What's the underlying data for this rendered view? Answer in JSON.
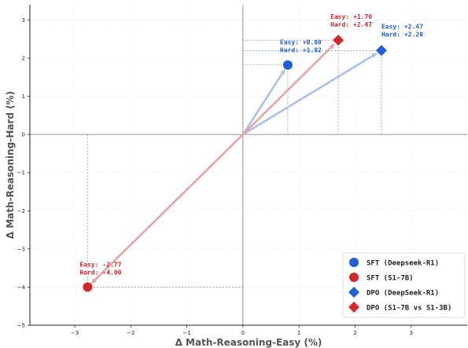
{
  "chart_data": {
    "type": "scatter",
    "xlabel": "Δ Math-Reasoning-Easy (%)",
    "ylabel": "Δ Math-Reasoning-Hard (%)",
    "xlim": [
      -3.8,
      4.0
    ],
    "ylim": [
      -5.0,
      3.4
    ],
    "xticks": [
      -3,
      -2,
      -1,
      0,
      1,
      2,
      3
    ],
    "yticks": [
      -5,
      -4,
      -3,
      -2,
      -1,
      0,
      1,
      2,
      3
    ],
    "xtick_labels": [
      "−3",
      "−2",
      "−1",
      "0",
      "1",
      "2",
      "3"
    ],
    "ytick_labels": [
      "−5",
      "−4",
      "−3",
      "−2",
      "−1",
      "0",
      "1",
      "2",
      "3"
    ],
    "grid": true,
    "legend_position": "bottom-right",
    "series": [
      {
        "name": "SFT (Deepseek-R1)",
        "marker": "circle",
        "color": "#1f5fdc",
        "x": [
          0.8
        ],
        "y": [
          1.82
        ],
        "annotation": [
          "Easy: +0.80",
          "Hard: +1.82"
        ],
        "annotation_side": "above-right"
      },
      {
        "name": "SFT (S1-7B)",
        "marker": "circle",
        "color": "#d62728",
        "x": [
          -2.77
        ],
        "y": [
          -4.0
        ],
        "annotation": [
          "Easy: -2.77",
          "Hard: -4.00"
        ],
        "annotation_side": "above"
      },
      {
        "name": "DPO (DeepSeek-R1)",
        "marker": "diamond",
        "color": "#1f5fdc",
        "x": [
          2.47
        ],
        "y": [
          2.2
        ],
        "annotation": [
          "Easy: +2.47",
          "Hard: +2.20"
        ],
        "annotation_side": "above"
      },
      {
        "name": "DPO (S1-7B vs S1-3B)",
        "marker": "diamond",
        "color": "#d62728",
        "x": [
          1.7
        ],
        "y": [
          2.47
        ],
        "annotation": [
          "Easy: +1.70",
          "Hard: +2.47"
        ],
        "annotation_side": "above-left"
      }
    ]
  }
}
